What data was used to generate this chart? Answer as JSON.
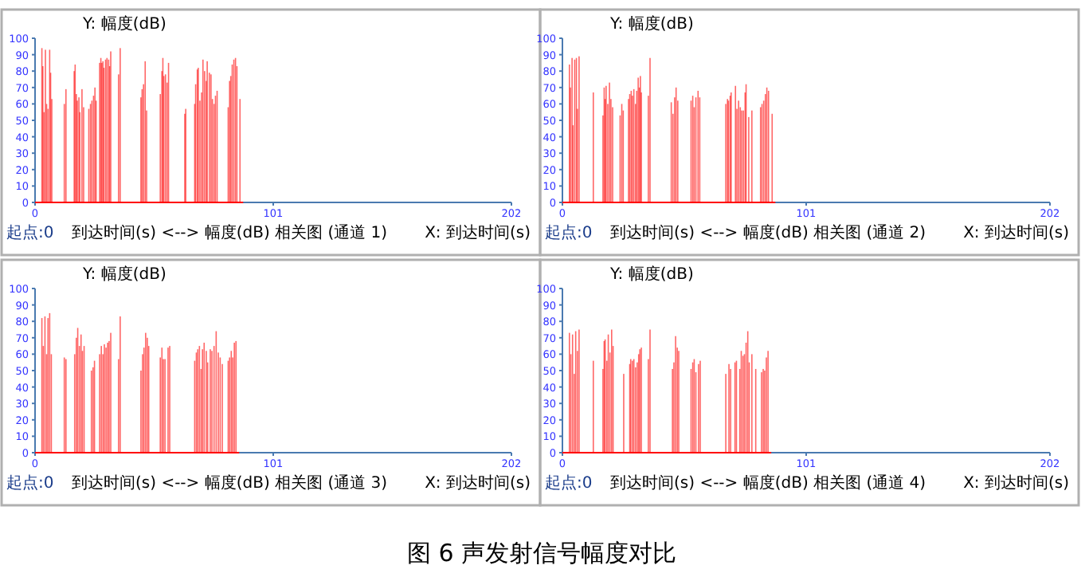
{
  "chart_data": [
    {
      "type": "bar",
      "ylabel": "Y: 幅度(dB)",
      "title": "到达时间(s) <--> 幅度(dB) 相关图 (通道 1)",
      "xlabel": "X: 到达时间(s)",
      "annotations": [
        "起点:0"
      ],
      "color": "#ff0000",
      "xlim": [
        0,
        202
      ],
      "ylim": [
        0,
        100
      ],
      "xticks": [
        0,
        101,
        202
      ],
      "yticks": [
        0,
        10,
        20,
        30,
        40,
        50,
        60,
        70,
        80,
        90,
        100
      ],
      "x": [
        2.9,
        3.3,
        3.8,
        4.4,
        4.9,
        5.5,
        6.2,
        6.6,
        7.1,
        12.4,
        13.1,
        16.6,
        17.0,
        17.5,
        17.9,
        18.6,
        19.0,
        19.9,
        20.6,
        22.8,
        23.5,
        24.1,
        24.8,
        25.4,
        25.9,
        27.4,
        27.9,
        28.3,
        28.8,
        29.2,
        29.9,
        30.5,
        31.2,
        31.6,
        32.1,
        35.4,
        36.1,
        44.9,
        45.4,
        46.0,
        46.7,
        47.3,
        53.1,
        53.8,
        54.2,
        54.6,
        55.3,
        56.0,
        56.6,
        63.5,
        63.9,
        67.7,
        68.1,
        68.8,
        69.2,
        69.9,
        70.6,
        71.2,
        71.9,
        72.6,
        73.0,
        73.9,
        74.6,
        75.2,
        75.9,
        76.5,
        77.2,
        81.9,
        82.5,
        83.0,
        83.6,
        84.3,
        85.0,
        85.6,
        86.9
      ],
      "values": [
        94,
        83,
        55,
        93,
        60,
        57,
        93,
        79,
        63,
        60,
        69,
        80,
        84,
        66,
        62,
        64,
        55,
        69,
        58,
        57,
        60,
        62,
        65,
        70,
        62,
        85,
        88,
        85,
        86,
        82,
        87,
        88,
        87,
        83,
        92,
        78,
        94,
        64,
        69,
        72,
        86,
        56,
        66,
        80,
        88,
        77,
        78,
        73,
        85,
        54,
        57,
        60,
        72,
        81,
        82,
        62,
        67,
        87,
        80,
        74,
        86,
        79,
        78,
        63,
        60,
        65,
        68,
        58,
        74,
        77,
        84,
        87,
        88,
        83,
        63
      ]
    },
    {
      "type": "bar",
      "ylabel": "Y: 幅度(dB)",
      "title": "到达时间(s) <--> 幅度(dB) 相关图 (通道 2)",
      "xlabel": "X: 到达时间(s)",
      "annotations": [
        "起点:0"
      ],
      "color": "#ff0000",
      "xlim": [
        0,
        202
      ],
      "ylim": [
        0,
        100
      ],
      "xticks": [
        0,
        101,
        202
      ],
      "yticks": [
        0,
        10,
        20,
        30,
        40,
        50,
        60,
        70,
        80,
        90,
        100
      ],
      "x": [
        2.9,
        3.3,
        4.0,
        4.4,
        5.1,
        5.8,
        6.2,
        6.9,
        12.8,
        16.8,
        17.3,
        17.7,
        18.1,
        18.8,
        19.5,
        20.1,
        20.8,
        23.9,
        24.6,
        25.2,
        27.4,
        27.9,
        28.5,
        29.0,
        29.6,
        30.3,
        30.8,
        31.4,
        31.9,
        32.3,
        32.7,
        35.6,
        36.3,
        45.1,
        45.8,
        46.5,
        47.1,
        47.8,
        53.3,
        54.0,
        54.6,
        55.3,
        56.2,
        56.9,
        67.7,
        68.4,
        68.8,
        69.5,
        69.9,
        71.7,
        72.3,
        73.0,
        73.7,
        74.3,
        75.0,
        75.7,
        76.1,
        77.2,
        78.5,
        82.1,
        82.7,
        83.4,
        84.1,
        84.7,
        85.4,
        86.9
      ],
      "values": [
        84,
        70,
        88,
        47,
        87,
        88,
        57,
        89,
        67,
        53,
        70,
        63,
        71,
        60,
        73,
        63,
        58,
        53,
        60,
        56,
        63,
        66,
        68,
        65,
        69,
        60,
        68,
        76,
        70,
        77,
        67,
        65,
        88,
        61,
        54,
        64,
        70,
        62,
        62,
        65,
        58,
        64,
        68,
        64,
        60,
        63,
        62,
        65,
        67,
        71,
        57,
        62,
        58,
        56,
        56,
        67,
        72,
        52,
        56,
        58,
        60,
        62,
        66,
        70,
        68,
        54
      ]
    },
    {
      "type": "bar",
      "ylabel": "Y: 幅度(dB)",
      "title": "到达时间(s) <--> 幅度(dB) 相关图 (通道 3)",
      "xlabel": "X: 到达时间(s)",
      "annotations": [
        "起点:0"
      ],
      "color": "#ff0000",
      "xlim": [
        0,
        202
      ],
      "ylim": [
        0,
        100
      ],
      "xticks": [
        0,
        101,
        202
      ],
      "yticks": [
        0,
        10,
        20,
        30,
        40,
        50,
        60,
        70,
        80,
        90,
        100
      ],
      "x": [
        2.9,
        3.5,
        4.2,
        4.9,
        5.5,
        6.2,
        6.9,
        12.4,
        13.1,
        16.8,
        17.5,
        18.1,
        18.8,
        19.5,
        20.1,
        20.8,
        23.9,
        24.6,
        25.2,
        27.4,
        28.1,
        28.8,
        29.4,
        30.1,
        30.8,
        31.4,
        32.1,
        35.4,
        36.1,
        44.9,
        45.6,
        46.2,
        46.9,
        47.6,
        48.2,
        53.1,
        53.8,
        54.4,
        55.1,
        56.4,
        57.1,
        67.7,
        68.4,
        69.0,
        69.7,
        70.4,
        71.0,
        71.7,
        72.6,
        73.2,
        74.3,
        75.0,
        75.9,
        76.8,
        77.7,
        78.5,
        79.4,
        81.9,
        82.5,
        83.2,
        83.8,
        84.5,
        85.2
      ],
      "values": [
        82,
        65,
        83,
        60,
        82,
        85,
        60,
        58,
        57,
        60,
        70,
        76,
        65,
        72,
        62,
        65,
        50,
        52,
        56,
        60,
        65,
        60,
        66,
        64,
        67,
        68,
        73,
        57,
        83,
        50,
        60,
        64,
        73,
        70,
        65,
        58,
        64,
        57,
        57,
        64,
        65,
        56,
        61,
        63,
        65,
        51,
        63,
        67,
        62,
        55,
        63,
        62,
        65,
        74,
        61,
        58,
        54,
        56,
        58,
        62,
        58,
        67,
        68
      ]
    },
    {
      "type": "bar",
      "ylabel": "Y: 幅度(dB)",
      "title": "到达时间(s) <--> 幅度(dB) 相关图 (通道 4)",
      "xlabel": "X: 到达时间(s)",
      "annotations": [
        "起点:0"
      ],
      "color": "#ff0000",
      "xlim": [
        0,
        202
      ],
      "ylim": [
        0,
        100
      ],
      "xticks": [
        0,
        101,
        202
      ],
      "yticks": [
        0,
        10,
        20,
        30,
        40,
        50,
        60,
        70,
        80,
        90,
        100
      ],
      "x": [
        2.9,
        3.5,
        4.2,
        4.9,
        5.5,
        6.2,
        6.9,
        12.8,
        16.8,
        17.3,
        17.7,
        18.4,
        19.0,
        19.7,
        20.4,
        21.0,
        25.4,
        27.9,
        28.3,
        29.0,
        29.6,
        30.3,
        31.0,
        31.6,
        32.1,
        32.7,
        35.6,
        36.3,
        45.6,
        46.2,
        46.9,
        47.6,
        48.2,
        53.3,
        54.0,
        54.6,
        55.3,
        56.4,
        57.1,
        67.7,
        69.0,
        69.7,
        71.5,
        72.1,
        73.5,
        74.1,
        74.8,
        75.4,
        76.1,
        76.8,
        77.4,
        78.5,
        80.1,
        82.5,
        83.2,
        83.8,
        84.5,
        85.2
      ],
      "values": [
        73,
        60,
        72,
        48,
        74,
        62,
        75,
        56,
        51,
        68,
        69,
        56,
        72,
        61,
        75,
        65,
        48,
        54,
        57,
        56,
        57,
        52,
        55,
        60,
        63,
        64,
        57,
        75,
        51,
        55,
        71,
        64,
        62,
        51,
        55,
        57,
        49,
        54,
        56,
        48,
        54,
        51,
        55,
        56,
        51,
        62,
        59,
        60,
        67,
        74,
        55,
        60,
        51,
        49,
        51,
        50,
        58,
        62
      ]
    },
    {
      "type": "other",
      "title": "图 6 声发射信号幅度对比"
    }
  ]
}
